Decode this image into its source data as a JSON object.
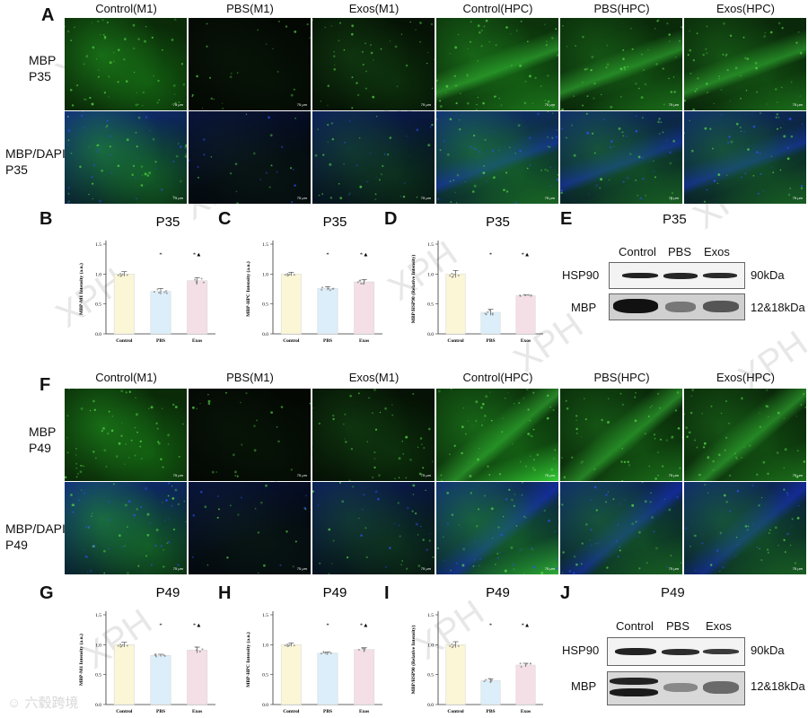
{
  "panels": {
    "A": "A",
    "B": "B",
    "C": "C",
    "D": "D",
    "E": "E",
    "F": "F",
    "G": "G",
    "H": "H",
    "I": "I",
    "J": "J"
  },
  "micrograph_columns": [
    "Control(M1)",
    "PBS(M1)",
    "Exos(M1)",
    "Control(HPC)",
    "PBS(HPC)",
    "Exos(HPC)"
  ],
  "p35_rows": [
    "MBP\nP35",
    "MBP/DAPI\nP35"
  ],
  "p49_rows": [
    "MBP\nP49",
    "MBP/DAPI\nP49"
  ],
  "scale_bar_label": "75 μm",
  "colors": {
    "green": "#1fa81f",
    "blue": "#1630c8",
    "control_bar": "#fbf6d6",
    "pbs_bar": "#dbeef9",
    "exos_bar": "#f3dfe5"
  },
  "western_blots": [
    {
      "title": "P35",
      "lanes": [
        "Control",
        "PBS",
        "Exos"
      ],
      "rows": [
        {
          "protein": "HSP90",
          "size": "90kDa"
        },
        {
          "protein": "MBP",
          "size": "12&18kDa"
        }
      ]
    },
    {
      "title": "P49",
      "lanes": [
        "Control",
        "PBS",
        "Exos"
      ],
      "rows": [
        {
          "protein": "HSP90",
          "size": "90kDa"
        },
        {
          "protein": "MBP",
          "size": "12&18kDa"
        }
      ]
    }
  ],
  "watermark": "XPH",
  "logo_text": "六毂跨境",
  "chart_data": [
    {
      "type": "bar",
      "title": "P35",
      "ylabel": "MBP-M1 Intensity (a.u.)",
      "categories": [
        "Control",
        "PBS",
        "Exos"
      ],
      "values": [
        1.0,
        0.71,
        0.89
      ],
      "errors": [
        0.04,
        0.05,
        0.05
      ],
      "ylim": [
        0,
        1.5
      ],
      "yticks": [
        "0.0",
        "0.5",
        "1.0",
        "1.5"
      ],
      "sig": [
        "",
        "*",
        "*▲"
      ]
    },
    {
      "type": "bar",
      "title": "P35",
      "ylabel": "MBP-HPC Intensity (a.u.)",
      "categories": [
        "Control",
        "PBS",
        "Exos"
      ],
      "values": [
        1.0,
        0.76,
        0.87
      ],
      "errors": [
        0.03,
        0.03,
        0.04
      ],
      "ylim": [
        0,
        1.5
      ],
      "yticks": [
        "0.0",
        "0.5",
        "1.0",
        "1.5"
      ],
      "sig": [
        "",
        "*",
        "*▲"
      ]
    },
    {
      "type": "bar",
      "title": "P35",
      "ylabel": "MBP/HSP90 (Relative Intensity)",
      "categories": [
        "Control",
        "PBS",
        "Exos"
      ],
      "values": [
        1.0,
        0.36,
        0.64
      ],
      "errors": [
        0.06,
        0.05,
        0.01
      ],
      "ylim": [
        0,
        1.5
      ],
      "yticks": [
        "0.0",
        "0.5",
        "1.0",
        "1.5"
      ],
      "sig": [
        "",
        "*",
        "*▲"
      ]
    },
    {
      "type": "bar",
      "title": "P49",
      "ylabel": "MBP-M1 Intensity (a.u.)",
      "categories": [
        "Control",
        "PBS",
        "Exos"
      ],
      "values": [
        1.0,
        0.82,
        0.91
      ],
      "errors": [
        0.04,
        0.02,
        0.05
      ],
      "ylim": [
        0,
        1.5
      ],
      "yticks": [
        "0.0",
        "0.5",
        "1.0",
        "1.5"
      ],
      "sig": [
        "",
        "*",
        "*▲"
      ]
    },
    {
      "type": "bar",
      "title": "P49",
      "ylabel": "MBP-HPC Intensity (a.u.)",
      "categories": [
        "Control",
        "PBS",
        "Exos"
      ],
      "values": [
        1.0,
        0.86,
        0.92
      ],
      "errors": [
        0.03,
        0.02,
        0.03
      ],
      "ylim": [
        0,
        1.5
      ],
      "yticks": [
        "0.0",
        "0.5",
        "1.0",
        "1.5"
      ],
      "sig": [
        "",
        "*",
        "*▲"
      ]
    },
    {
      "type": "bar",
      "title": "P49",
      "ylabel": "MBP/HSP90 (Relative Intensity)",
      "categories": [
        "Control",
        "PBS",
        "Exos"
      ],
      "values": [
        1.0,
        0.4,
        0.66
      ],
      "errors": [
        0.05,
        0.03,
        0.03
      ],
      "ylim": [
        0,
        1.5
      ],
      "yticks": [
        "0.0",
        "0.5",
        "1.0",
        "1.5"
      ],
      "sig": [
        "",
        "*",
        "*▲"
      ]
    }
  ]
}
